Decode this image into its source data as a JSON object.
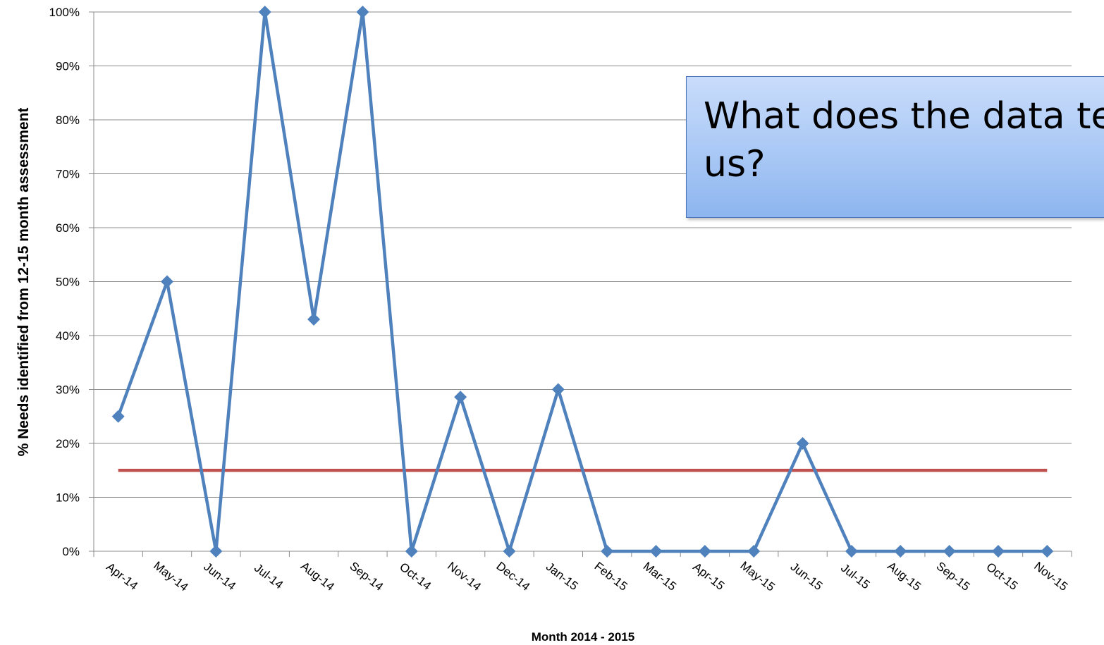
{
  "callout": {
    "text": "What does the data tell us?"
  },
  "chart_data": {
    "type": "line",
    "xlabel": "Month  2014 - 2015",
    "ylabel": "% Needs identified from 12-15 month assessment",
    "ylim": [
      0,
      100
    ],
    "y_ticks": [
      "0%",
      "10%",
      "20%",
      "30%",
      "40%",
      "50%",
      "60%",
      "70%",
      "80%",
      "90%",
      "100%"
    ],
    "grid": true,
    "categories": [
      "Apr-14",
      "May-14",
      "Jun-14",
      "Jul-14",
      "Aug-14",
      "Sep-14",
      "Oct-14",
      "Nov-14",
      "Dec-14",
      "Jan-15",
      "Feb-15",
      "Mar-15",
      "Apr-15",
      "May-15",
      "Jun-15",
      "Jul-15",
      "Aug-15",
      "Sep-15",
      "Oct-15",
      "Nov-15"
    ],
    "series": [
      {
        "color": "#4f81bd",
        "marker": "diamond",
        "values": [
          25,
          50,
          0,
          100,
          43,
          100,
          0,
          28.6,
          0,
          30,
          0,
          0,
          0,
          0,
          20,
          0,
          0,
          0,
          0,
          0
        ]
      },
      {
        "color": "#c0504d",
        "marker": "none",
        "values": [
          15,
          15,
          15,
          15,
          15,
          15,
          15,
          15,
          15,
          15,
          15,
          15,
          15,
          15,
          15,
          15,
          15,
          15,
          15,
          15
        ]
      }
    ]
  }
}
